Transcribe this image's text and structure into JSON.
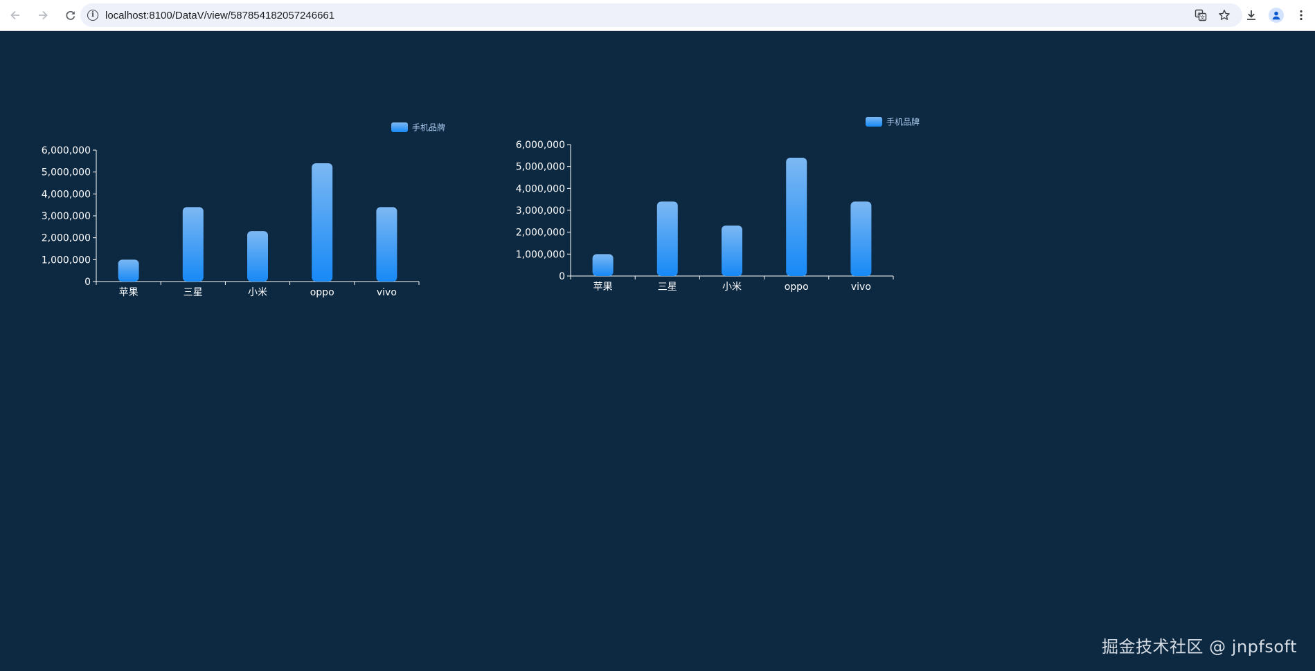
{
  "browser": {
    "url": "localhost:8100/DataV/view/587854182057246661",
    "icons": {
      "back": "arrow-left-icon",
      "forward": "arrow-right-icon",
      "reload": "reload-icon",
      "info": "info-icon",
      "translate": "translate-icon",
      "bookmark": "star-icon",
      "download": "download-icon",
      "profile": "profile-icon",
      "menu": "kebab-menu-icon"
    }
  },
  "colors": {
    "background": "#0d2841",
    "bar_top": "#7cb8f3",
    "bar_bottom": "#1789f6",
    "axis": "#ffffff",
    "legend_text": "#a9c9ee"
  },
  "chart_data": [
    {
      "type": "bar",
      "legend": [
        "手机品牌"
      ],
      "legend_position": "top-right",
      "categories": [
        "苹果",
        "三星",
        "小米",
        "oppo",
        "vivo"
      ],
      "series": [
        {
          "name": "手机品牌",
          "values": [
            1000000,
            3400000,
            2300000,
            5400000,
            3400000
          ]
        }
      ],
      "yticks": [
        "0",
        "1,000,000",
        "2,000,000",
        "3,000,000",
        "4,000,000",
        "5,000,000",
        "6,000,000"
      ],
      "ylim": [
        0,
        6000000
      ],
      "grid": false
    },
    {
      "type": "bar",
      "legend": [
        "手机品牌"
      ],
      "legend_position": "top-right",
      "categories": [
        "苹果",
        "三星",
        "小米",
        "oppo",
        "vivo"
      ],
      "series": [
        {
          "name": "手机品牌",
          "values": [
            1000000,
            3400000,
            2300000,
            5400000,
            3400000
          ]
        }
      ],
      "yticks": [
        "0",
        "1,000,000",
        "2,000,000",
        "3,000,000",
        "4,000,000",
        "5,000,000",
        "6,000,000"
      ],
      "ylim": [
        0,
        6000000
      ],
      "grid": false
    }
  ],
  "watermark": "掘金技术社区 @ jnpfsoft"
}
